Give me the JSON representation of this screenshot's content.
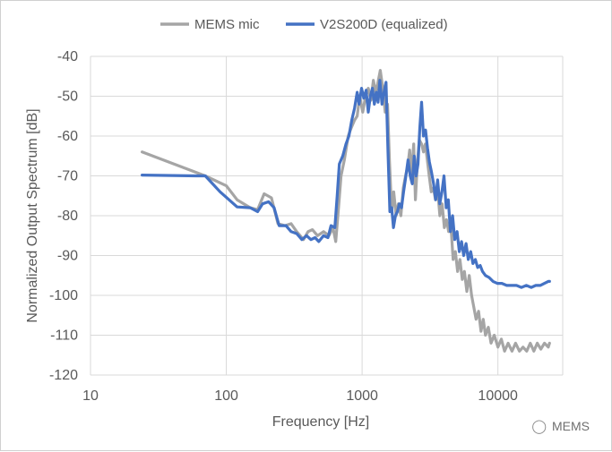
{
  "chart_data": {
    "type": "line",
    "xlabel": "Frequency [Hz]",
    "ylabel": "Normalized Output Spectrum [dB]",
    "x_scale": "log",
    "xlim": [
      10,
      30000
    ],
    "ylim": [
      -120,
      -40
    ],
    "x_ticks": [
      10,
      100,
      1000,
      10000
    ],
    "x_tick_labels": [
      "10",
      "100",
      "1000",
      "10000"
    ],
    "y_ticks": [
      -40,
      -50,
      -60,
      -70,
      -80,
      -90,
      -100,
      -110,
      -120
    ],
    "y_tick_labels": [
      "-40",
      "-50",
      "-60",
      "-70",
      "-80",
      "-90",
      "-100",
      "-110",
      "-120"
    ],
    "grid": true,
    "legend_position": "top",
    "series": [
      {
        "name": "MEMS mic",
        "color": "#a5a5a5",
        "points": [
          [
            24,
            -64
          ],
          [
            70,
            -70
          ],
          [
            100,
            -72.5
          ],
          [
            120,
            -76
          ],
          [
            150,
            -78
          ],
          [
            170,
            -78.5
          ],
          [
            190,
            -74.5
          ],
          [
            215,
            -75.5
          ],
          [
            240,
            -82
          ],
          [
            270,
            -82.5
          ],
          [
            300,
            -82
          ],
          [
            330,
            -84
          ],
          [
            370,
            -86
          ],
          [
            400,
            -84
          ],
          [
            430,
            -83.5
          ],
          [
            470,
            -85
          ],
          [
            520,
            -84
          ],
          [
            570,
            -85
          ],
          [
            610,
            -83
          ],
          [
            640,
            -86.5
          ],
          [
            670,
            -78
          ],
          [
            700,
            -70
          ],
          [
            740,
            -66
          ],
          [
            790,
            -60
          ],
          [
            830,
            -58
          ],
          [
            880,
            -56
          ],
          [
            920,
            -55
          ],
          [
            960,
            -50
          ],
          [
            1010,
            -54
          ],
          [
            1060,
            -50
          ],
          [
            1110,
            -48
          ],
          [
            1160,
            -51
          ],
          [
            1210,
            -46
          ],
          [
            1260,
            -49
          ],
          [
            1300,
            -47
          ],
          [
            1360,
            -43.5
          ],
          [
            1420,
            -48
          ],
          [
            1480,
            -54
          ],
          [
            1540,
            -52
          ],
          [
            1590,
            -66
          ],
          [
            1650,
            -79
          ],
          [
            1710,
            -74
          ],
          [
            1780,
            -80
          ],
          [
            1850,
            -77
          ],
          [
            1930,
            -80
          ],
          [
            2010,
            -73
          ],
          [
            2090,
            -70
          ],
          [
            2170,
            -67.5
          ],
          [
            2240,
            -63.5
          ],
          [
            2310,
            -70
          ],
          [
            2400,
            -62
          ],
          [
            2470,
            -76
          ],
          [
            2560,
            -66
          ],
          [
            2640,
            -61
          ],
          [
            2740,
            -62
          ],
          [
            2830,
            -64
          ],
          [
            2920,
            -62
          ],
          [
            3020,
            -66
          ],
          [
            3120,
            -70
          ],
          [
            3230,
            -74
          ],
          [
            3350,
            -73
          ],
          [
            3470,
            -76
          ],
          [
            3600,
            -73.5
          ],
          [
            3740,
            -80
          ],
          [
            3880,
            -77
          ],
          [
            4030,
            -83
          ],
          [
            4180,
            -81
          ],
          [
            4340,
            -84
          ],
          [
            4500,
            -82
          ],
          [
            4680,
            -91
          ],
          [
            4860,
            -89
          ],
          [
            5050,
            -94
          ],
          [
            5250,
            -91
          ],
          [
            5460,
            -96
          ],
          [
            5670,
            -94
          ],
          [
            5900,
            -99
          ],
          [
            6150,
            -95
          ],
          [
            6400,
            -100
          ],
          [
            6650,
            -103
          ],
          [
            6900,
            -106
          ],
          [
            7200,
            -104
          ],
          [
            7500,
            -109
          ],
          [
            7800,
            -106
          ],
          [
            8100,
            -110
          ],
          [
            8500,
            -108
          ],
          [
            8900,
            -112
          ],
          [
            9400,
            -110
          ],
          [
            10000,
            -113
          ],
          [
            10600,
            -111
          ],
          [
            11200,
            -114
          ],
          [
            11900,
            -112
          ],
          [
            12700,
            -114
          ],
          [
            13500,
            -112
          ],
          [
            14400,
            -114
          ],
          [
            15300,
            -113
          ],
          [
            16300,
            -114
          ],
          [
            17300,
            -112
          ],
          [
            18400,
            -114
          ],
          [
            19500,
            -112
          ],
          [
            20700,
            -113.5
          ],
          [
            22000,
            -112
          ],
          [
            23500,
            -113
          ],
          [
            24000,
            -112
          ]
        ]
      },
      {
        "name": "V2S200D (equalized)",
        "color": "#4472c4",
        "points": [
          [
            24,
            -69.8
          ],
          [
            60,
            -70
          ],
          [
            70,
            -70
          ],
          [
            90,
            -74
          ],
          [
            120,
            -77.8
          ],
          [
            150,
            -78
          ],
          [
            170,
            -79
          ],
          [
            185,
            -77
          ],
          [
            205,
            -76.5
          ],
          [
            225,
            -78
          ],
          [
            245,
            -82.5
          ],
          [
            275,
            -82.5
          ],
          [
            300,
            -84
          ],
          [
            330,
            -84.5
          ],
          [
            360,
            -86
          ],
          [
            390,
            -85
          ],
          [
            420,
            -86
          ],
          [
            450,
            -85.5
          ],
          [
            480,
            -86.5
          ],
          [
            520,
            -85
          ],
          [
            560,
            -85.5
          ],
          [
            590,
            -82.5
          ],
          [
            630,
            -83
          ],
          [
            655,
            -75
          ],
          [
            680,
            -67
          ],
          [
            720,
            -65
          ],
          [
            760,
            -62
          ],
          [
            800,
            -60
          ],
          [
            840,
            -56
          ],
          [
            880,
            -53
          ],
          [
            920,
            -49
          ],
          [
            950,
            -52
          ],
          [
            990,
            -48
          ],
          [
            1030,
            -50.5
          ],
          [
            1070,
            -48.5
          ],
          [
            1110,
            -54
          ],
          [
            1150,
            -50
          ],
          [
            1190,
            -48
          ],
          [
            1230,
            -52
          ],
          [
            1270,
            -49
          ],
          [
            1310,
            -51.5
          ],
          [
            1350,
            -46
          ],
          [
            1400,
            -52
          ],
          [
            1450,
            -49
          ],
          [
            1500,
            -46.5
          ],
          [
            1550,
            -64
          ],
          [
            1600,
            -79
          ],
          [
            1650,
            -78
          ],
          [
            1700,
            -83
          ],
          [
            1760,
            -80
          ],
          [
            1820,
            -79
          ],
          [
            1880,
            -77
          ],
          [
            1950,
            -78
          ],
          [
            2020,
            -74
          ],
          [
            2100,
            -70
          ],
          [
            2180,
            -66
          ],
          [
            2260,
            -70
          ],
          [
            2340,
            -72
          ],
          [
            2420,
            -65
          ],
          [
            2500,
            -70
          ],
          [
            2580,
            -67
          ],
          [
            2660,
            -58
          ],
          [
            2740,
            -51.5
          ],
          [
            2830,
            -60
          ],
          [
            2930,
            -58.5
          ],
          [
            3030,
            -63
          ],
          [
            3130,
            -66.5
          ],
          [
            3240,
            -69
          ],
          [
            3360,
            -72
          ],
          [
            3480,
            -76
          ],
          [
            3600,
            -71
          ],
          [
            3730,
            -77
          ],
          [
            3870,
            -74
          ],
          [
            4010,
            -70
          ],
          [
            4160,
            -78
          ],
          [
            4310,
            -76
          ],
          [
            4470,
            -84
          ],
          [
            4640,
            -80
          ],
          [
            4810,
            -86
          ],
          [
            5000,
            -84
          ],
          [
            5200,
            -89
          ],
          [
            5400,
            -86.5
          ],
          [
            5600,
            -90
          ],
          [
            5820,
            -87
          ],
          [
            6050,
            -91
          ],
          [
            6300,
            -89
          ],
          [
            6550,
            -92
          ],
          [
            6820,
            -91
          ],
          [
            7100,
            -93
          ],
          [
            7400,
            -92.5
          ],
          [
            7700,
            -94
          ],
          [
            8100,
            -95
          ],
          [
            8600,
            -95.5
          ],
          [
            9200,
            -96.5
          ],
          [
            9900,
            -97
          ],
          [
            10700,
            -97
          ],
          [
            11600,
            -97.5
          ],
          [
            12600,
            -97.5
          ],
          [
            13700,
            -97.5
          ],
          [
            14900,
            -98
          ],
          [
            16200,
            -97.5
          ],
          [
            17600,
            -98
          ],
          [
            19000,
            -97.5
          ],
          [
            20500,
            -97.5
          ],
          [
            22000,
            -97
          ],
          [
            23500,
            -96.5
          ],
          [
            24000,
            -96.5
          ]
        ]
      }
    ]
  },
  "watermark": {
    "text": "MEMS",
    "icon": "wechat-icon"
  }
}
